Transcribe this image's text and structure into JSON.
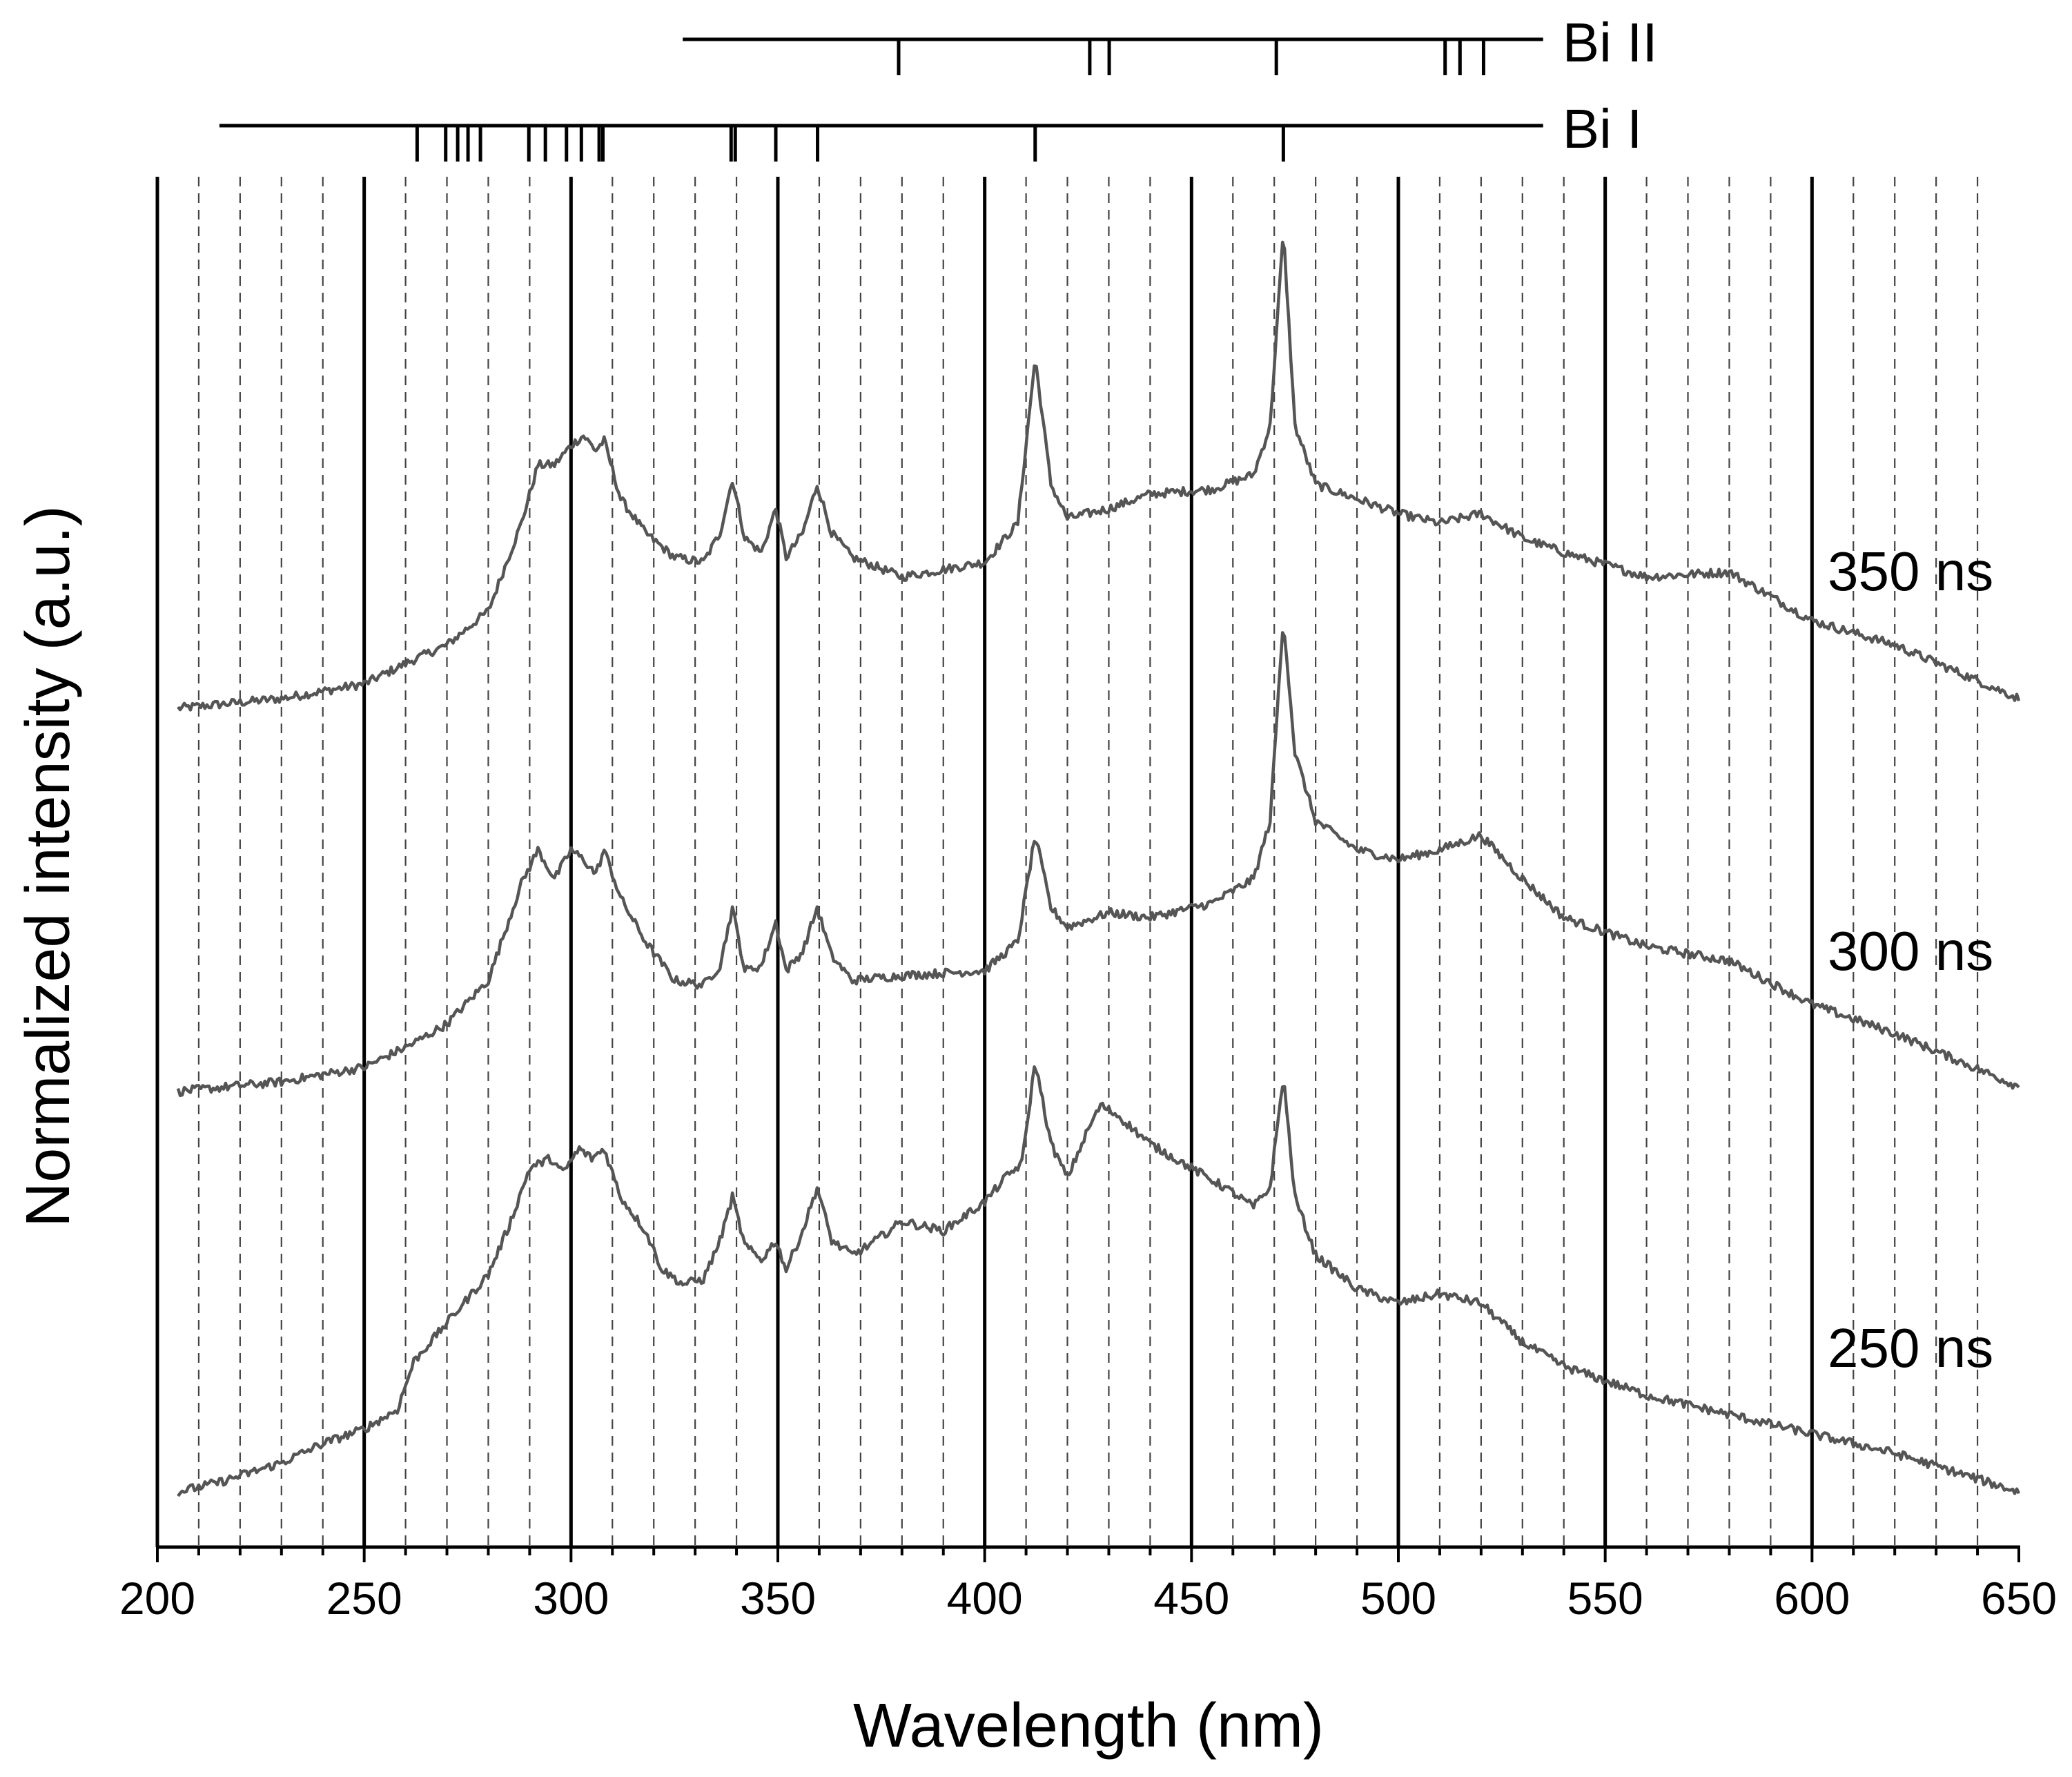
{
  "chart_data": {
    "type": "line",
    "xlabel": "Wavelength (nm)",
    "ylabel": "Normalized intensity (a.u.)",
    "xlim": [
      200,
      650
    ],
    "xticks": [
      "200",
      "250",
      "300",
      "350",
      "400",
      "450",
      "500",
      "550",
      "600",
      "650"
    ],
    "major_gridlines": [
      250,
      300,
      350,
      400,
      450,
      500,
      550,
      600
    ],
    "minor_gridlines": [
      210,
      220,
      230,
      240,
      260,
      270,
      280,
      290,
      310,
      320,
      330,
      340,
      360,
      370,
      380,
      390,
      410,
      420,
      430,
      440,
      460,
      470,
      480,
      490,
      510,
      520,
      530,
      540,
      560,
      570,
      580,
      590,
      610,
      620,
      630,
      640
    ],
    "line_color": "#555555",
    "species": [
      {
        "name": "Bi II",
        "span": [
          327,
          535
        ],
        "lines": [
          379.2,
          425.4,
          430.1,
          470.5,
          511.3,
          514.9,
          520.6
        ]
      },
      {
        "name": "Bi I",
        "span": [
          215,
          535
        ],
        "lines": [
          262.8,
          269.7,
          272.6,
          275.1,
          278.1,
          289.8,
          293.8,
          298.9,
          302.5,
          306.8,
          307.7,
          338.7,
          339.7,
          349.5,
          359.6,
          412.2,
          472.2
        ]
      }
    ],
    "series": [
      {
        "name": "350 ns",
        "x": [
          205,
          230,
          250,
          262,
          270,
          280,
          288,
          292,
          296,
          300,
          303,
          306,
          308,
          312,
          318,
          325,
          332,
          336,
          339,
          342,
          346,
          349.5,
          352,
          356,
          359.5,
          363,
          368,
          380,
          400,
          408,
          412.2,
          416,
          420,
          430,
          440,
          455,
          465,
          469,
          472.2,
          475,
          480,
          490,
          500,
          510,
          520,
          530,
          540,
          560,
          580,
          600,
          620,
          650
        ],
        "values": [
          0.02,
          0.04,
          0.07,
          0.12,
          0.15,
          0.22,
          0.4,
          0.52,
          0.52,
          0.56,
          0.58,
          0.55,
          0.57,
          0.45,
          0.38,
          0.33,
          0.32,
          0.38,
          0.49,
          0.37,
          0.34,
          0.43,
          0.33,
          0.38,
          0.48,
          0.38,
          0.33,
          0.29,
          0.32,
          0.4,
          0.74,
          0.48,
          0.41,
          0.43,
          0.46,
          0.47,
          0.5,
          0.6,
          1.0,
          0.6,
          0.48,
          0.45,
          0.42,
          0.4,
          0.42,
          0.37,
          0.34,
          0.29,
          0.3,
          0.2,
          0.15,
          0.04
        ]
      },
      {
        "name": "300 ns",
        "x": [
          205,
          230,
          250,
          262,
          270,
          280,
          288,
          292,
          296,
          300,
          303,
          306,
          308,
          312,
          318,
          325,
          332,
          336,
          339,
          342,
          346,
          349.5,
          352,
          356,
          359.5,
          363,
          368,
          380,
          400,
          408,
          412.2,
          416,
          420,
          430,
          440,
          455,
          465,
          469,
          472.2,
          475,
          480,
          490,
          500,
          510,
          520,
          530,
          540,
          560,
          580,
          600,
          620,
          650
        ],
        "values": [
          0.02,
          0.04,
          0.07,
          0.12,
          0.16,
          0.25,
          0.45,
          0.52,
          0.46,
          0.52,
          0.5,
          0.47,
          0.52,
          0.42,
          0.33,
          0.25,
          0.24,
          0.28,
          0.4,
          0.27,
          0.28,
          0.37,
          0.27,
          0.31,
          0.4,
          0.3,
          0.25,
          0.26,
          0.27,
          0.33,
          0.55,
          0.4,
          0.36,
          0.39,
          0.38,
          0.41,
          0.46,
          0.58,
          1.0,
          0.72,
          0.58,
          0.52,
          0.5,
          0.52,
          0.55,
          0.46,
          0.38,
          0.32,
          0.29,
          0.2,
          0.14,
          0.03
        ]
      },
      {
        "name": "250 ns",
        "x": [
          205,
          215,
          230,
          240,
          250,
          258,
          262,
          270,
          280,
          285,
          290,
          295,
          298,
          302,
          305,
          308,
          312,
          318,
          322,
          327,
          332,
          336,
          339,
          342,
          346,
          349.5,
          352,
          356,
          359.5,
          363,
          368,
          372,
          380,
          390,
          400,
          405,
          409,
          412.2,
          416,
          420,
          425,
          428,
          432,
          440,
          450,
          458,
          465,
          469,
          472.2,
          475,
          480,
          490,
          500,
          510,
          520,
          530,
          540,
          560,
          580,
          600,
          620,
          650
        ],
        "values": [
          0.01,
          0.03,
          0.07,
          0.11,
          0.14,
          0.18,
          0.28,
          0.36,
          0.46,
          0.56,
          0.68,
          0.7,
          0.67,
          0.72,
          0.7,
          0.72,
          0.62,
          0.55,
          0.47,
          0.44,
          0.45,
          0.53,
          0.62,
          0.52,
          0.49,
          0.53,
          0.47,
          0.55,
          0.64,
          0.53,
          0.5,
          0.52,
          0.57,
          0.55,
          0.61,
          0.66,
          0.69,
          0.9,
          0.73,
          0.66,
          0.76,
          0.81,
          0.79,
          0.73,
          0.68,
          0.64,
          0.6,
          0.64,
          0.87,
          0.62,
          0.5,
          0.43,
          0.4,
          0.42,
          0.4,
          0.32,
          0.27,
          0.21,
          0.17,
          0.13,
          0.09,
          0.01
        ]
      }
    ]
  }
}
